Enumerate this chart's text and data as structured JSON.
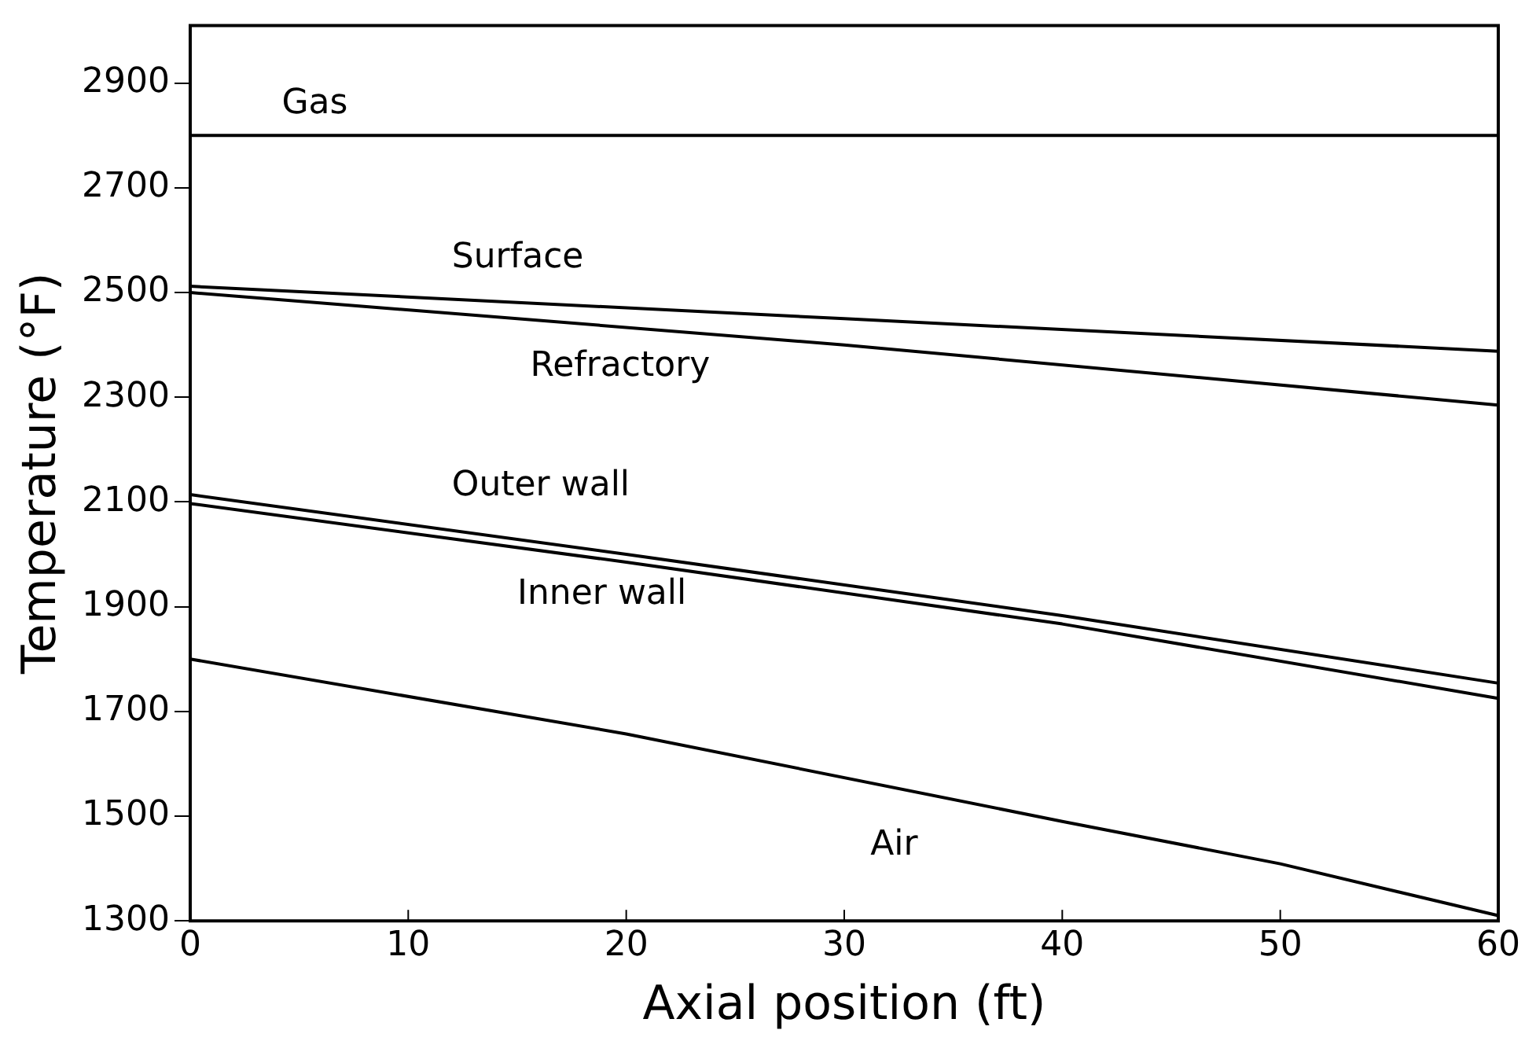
{
  "chart_data": {
    "type": "line",
    "xlabel": "Axial position (ft)",
    "ylabel": "Temperature (°F)",
    "xlim": [
      0,
      60
    ],
    "xticks": [
      0,
      10,
      20,
      30,
      40,
      50,
      60
    ],
    "ylim": [
      1300,
      3010
    ],
    "yticks": [
      1300,
      1500,
      1700,
      1900,
      2100,
      2300,
      2500,
      2700,
      2900
    ],
    "grid": false,
    "legend": false,
    "marker": "none",
    "line_style": "solid",
    "series": [
      {
        "name": "Gas",
        "color": "#000000",
        "x": [
          0,
          60
        ],
        "values": [
          2800,
          2800
        ]
      },
      {
        "name": "Surface",
        "color": "#000000",
        "x": [
          0,
          30,
          60
        ],
        "values": [
          2512,
          2450,
          2388
        ]
      },
      {
        "name": "Refractory",
        "color": "#000000",
        "x": [
          0,
          30,
          60
        ],
        "values": [
          2500,
          2400,
          2285
        ]
      },
      {
        "name": "Outer wall",
        "color": "#000000",
        "x": [
          0,
          20,
          40,
          60
        ],
        "values": [
          2114,
          2000,
          1883,
          1754
        ]
      },
      {
        "name": "Inner wall",
        "color": "#000000",
        "x": [
          0,
          20,
          40,
          60
        ],
        "values": [
          2097,
          1985,
          1867,
          1725
        ]
      },
      {
        "name": "Air",
        "color": "#000000",
        "x": [
          0,
          20,
          40,
          50,
          60
        ],
        "values": [
          1800,
          1657,
          1490,
          1409,
          1310
        ]
      }
    ]
  }
}
